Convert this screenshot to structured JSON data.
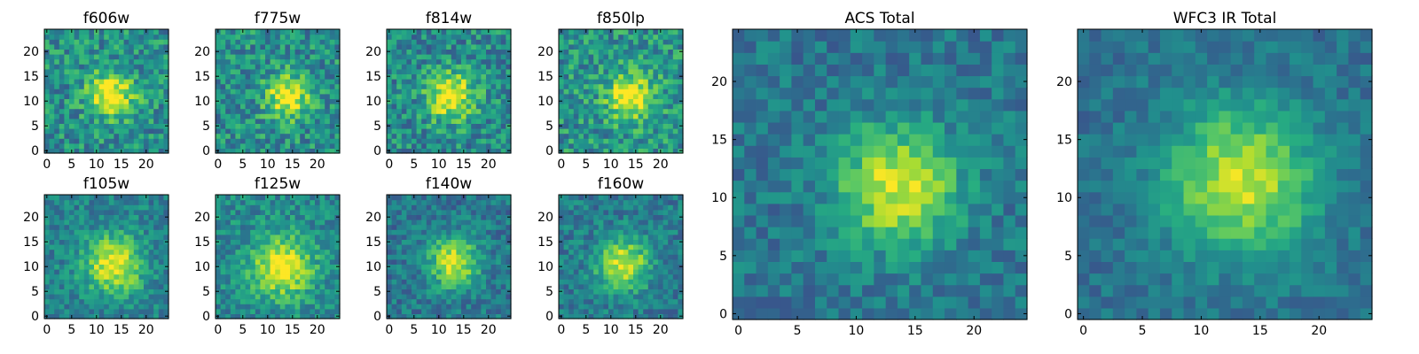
{
  "figure": {
    "colormap": "viridis",
    "frame_color": "#000000"
  },
  "chart_data": [
    {
      "type": "heatmap",
      "title": "f606w",
      "grid": 25,
      "xlim": [
        0,
        24
      ],
      "ylim": [
        0,
        24
      ],
      "xticks": [
        0,
        5,
        10,
        15,
        20
      ],
      "yticks": [
        0,
        5,
        10,
        15,
        20
      ],
      "source_center": [
        13,
        11.5
      ],
      "source_width": 3.2,
      "noise": 0.42,
      "base": 0.5,
      "seed": 11
    },
    {
      "type": "heatmap",
      "title": "f775w",
      "grid": 25,
      "xlim": [
        0,
        24
      ],
      "ylim": [
        0,
        24
      ],
      "xticks": [
        0,
        5,
        10,
        15,
        20
      ],
      "yticks": [
        0,
        5,
        10,
        15,
        20
      ],
      "source_center": [
        14,
        11
      ],
      "source_width": 3.0,
      "noise": 0.42,
      "base": 0.5,
      "seed": 23
    },
    {
      "type": "heatmap",
      "title": "f814w",
      "grid": 25,
      "xlim": [
        0,
        24
      ],
      "ylim": [
        0,
        24
      ],
      "xticks": [
        0,
        5,
        10,
        15,
        20
      ],
      "yticks": [
        0,
        5,
        10,
        15,
        20
      ],
      "source_center": [
        12.5,
        11
      ],
      "source_width": 3.4,
      "noise": 0.42,
      "base": 0.48,
      "seed": 37
    },
    {
      "type": "heatmap",
      "title": "f850lp",
      "grid": 25,
      "xlim": [
        0,
        24
      ],
      "ylim": [
        0,
        24
      ],
      "xticks": [
        0,
        5,
        10,
        15,
        20
      ],
      "yticks": [
        0,
        5,
        10,
        15,
        20
      ],
      "source_center": [
        14,
        11
      ],
      "source_width": 3.2,
      "noise": 0.42,
      "base": 0.52,
      "seed": 41
    },
    {
      "type": "heatmap",
      "title": "f105w",
      "grid": 25,
      "xlim": [
        0,
        24
      ],
      "ylim": [
        0,
        24
      ],
      "xticks": [
        0,
        5,
        10,
        15,
        20
      ],
      "yticks": [
        0,
        5,
        10,
        15,
        20
      ],
      "source_center": [
        13.5,
        10.5
      ],
      "source_width": 4.0,
      "noise": 0.3,
      "base": 0.45,
      "seed": 53
    },
    {
      "type": "heatmap",
      "title": "f125w",
      "grid": 25,
      "xlim": [
        0,
        24
      ],
      "ylim": [
        0,
        24
      ],
      "xticks": [
        0,
        5,
        10,
        15,
        20
      ],
      "yticks": [
        0,
        5,
        10,
        15,
        20
      ],
      "source_center": [
        13,
        10
      ],
      "source_width": 4.2,
      "noise": 0.32,
      "base": 0.48,
      "seed": 67
    },
    {
      "type": "heatmap",
      "title": "f140w",
      "grid": 25,
      "xlim": [
        0,
        24
      ],
      "ylim": [
        0,
        24
      ],
      "xticks": [
        0,
        5,
        10,
        15,
        20
      ],
      "yticks": [
        0,
        5,
        10,
        15,
        20
      ],
      "source_center": [
        13,
        11
      ],
      "source_width": 3.6,
      "noise": 0.3,
      "base": 0.4,
      "seed": 71
    },
    {
      "type": "heatmap",
      "title": "f160w",
      "grid": 25,
      "xlim": [
        0,
        24
      ],
      "ylim": [
        0,
        24
      ],
      "xticks": [
        0,
        5,
        10,
        15,
        20
      ],
      "yticks": [
        0,
        5,
        10,
        15,
        20
      ],
      "source_center": [
        12.5,
        10.5
      ],
      "source_width": 3.6,
      "noise": 0.3,
      "base": 0.42,
      "seed": 83
    },
    {
      "type": "heatmap",
      "title": "ACS Total",
      "grid": 25,
      "xlim": [
        0,
        24
      ],
      "ylim": [
        0,
        24
      ],
      "xticks": [
        0,
        5,
        10,
        15,
        20
      ],
      "yticks": [
        0,
        5,
        10,
        15,
        20
      ],
      "source_center": [
        13.5,
        11
      ],
      "source_width": 3.6,
      "noise": 0.26,
      "base": 0.4,
      "seed": 97
    },
    {
      "type": "heatmap",
      "title": "WFC3 IR Total",
      "grid": 25,
      "xlim": [
        0,
        24
      ],
      "ylim": [
        0,
        24
      ],
      "xticks": [
        0,
        5,
        10,
        15,
        20
      ],
      "yticks": [
        0,
        5,
        10,
        15,
        20
      ],
      "source_center": [
        13.5,
        11.5
      ],
      "source_width": 4.4,
      "noise": 0.2,
      "base": 0.38,
      "seed": 101
    }
  ]
}
